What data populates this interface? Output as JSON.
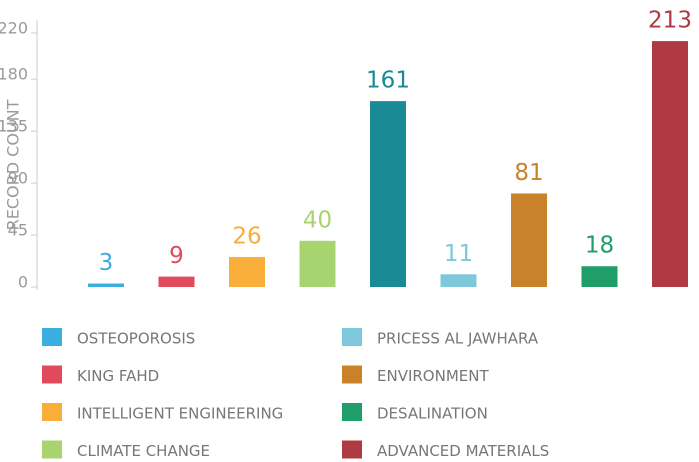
{
  "chart_data": {
    "type": "bar",
    "y_label": "RECORD COUNT",
    "categories": [
      "OSTEOPOROSIS",
      "KING FAHD",
      "INTELLIGENT ENGINEERING",
      "CLIMATE CHANGE",
      null,
      "PRICESS AL JAWHARA",
      "ENVIRONMENT",
      "DESALINATION",
      "ADVANCED MATERIALS"
    ],
    "values": [
      3,
      9,
      26,
      40,
      161,
      11,
      81,
      18,
      213
    ],
    "colors": [
      "#3aaee0",
      "#e04a5a",
      "#f9ae3a",
      "#a8d46f",
      "#1a8a96",
      "#7ec8dc",
      "#c9822a",
      "#1f9e6a",
      "#b03a44"
    ],
    "ylim": [
      0,
      220
    ],
    "yticks": [
      0,
      45,
      90,
      135,
      180,
      220
    ]
  }
}
